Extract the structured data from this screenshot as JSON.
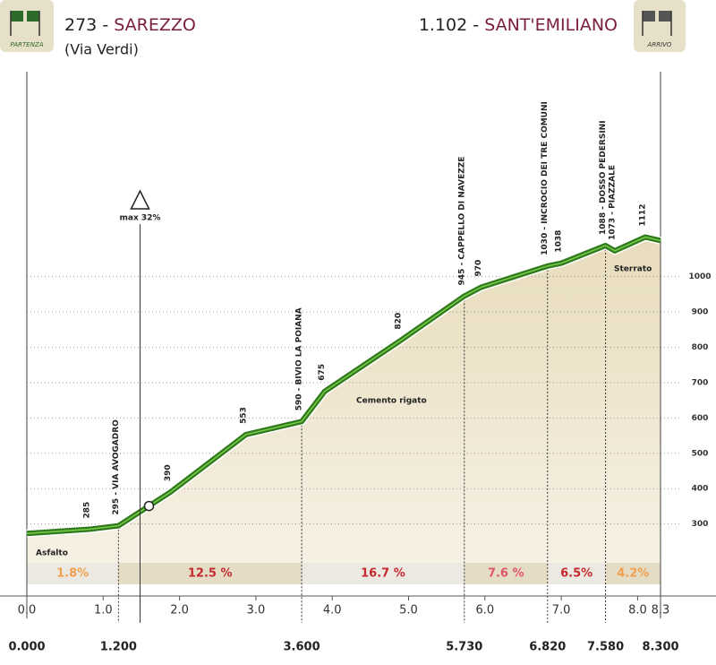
{
  "chart_data": {
    "type": "elevation-profile",
    "start": {
      "elevation": 273,
      "name": "SAREZZO",
      "note": "(Via Verdi)",
      "badge": "PARTENZA"
    },
    "end": {
      "elevation": {
        "value": 1102,
        "label": "1.102"
      },
      "name": "SANT'EMILIANO",
      "badge": "ARRIVO"
    },
    "separator": "-",
    "profile": {
      "x": [
        0,
        0.82,
        1.2,
        1.88,
        2.87,
        3.6,
        3.9,
        4.9,
        5.73,
        5.95,
        6.82,
        7.0,
        7.58,
        7.7,
        8.1,
        8.3
      ],
      "y": [
        273,
        285,
        295,
        390,
        553,
        590,
        675,
        820,
        945,
        970,
        1030,
        1038,
        1088,
        1073,
        1112,
        1102
      ],
      "point_labels": [
        null,
        "285",
        "295 - VIA AVOGADRO",
        "390",
        "553",
        "590 - BIVIO LA POIANA",
        "675",
        "820",
        "945 - CAPPELLO DI NAVEZZE",
        "970",
        "1030 - INCROCIO DEI TRE COMUNI",
        "1038",
        "1088 - DOSSO PEDERSINI",
        "1073 - PIAZZALE",
        "1112",
        null
      ],
      "color": "#2f7a1c"
    },
    "max_slope": {
      "label": "max 32%",
      "x": 1.6
    },
    "surfaces": [
      "Asfalto",
      "Cemento rigato",
      "Sterrato"
    ],
    "grades": {
      "values": [
        1.8,
        12.5,
        16.7,
        7.6,
        6.5,
        4.2
      ],
      "value_labels": [
        "1.8%",
        "12.5 %",
        "16.7 %",
        "7.6 %",
        "6.5%",
        "4.2%"
      ],
      "colors": [
        "#f0a050",
        "#c42a2e",
        "#c42a2e",
        "#e0566a",
        "#c42a2e",
        "#f0a050"
      ]
    },
    "markers": [
      {
        "value": 0,
        "label": "0.000"
      },
      {
        "value": 1.2,
        "label": "1.200"
      },
      {
        "value": 3.6,
        "label": "3.600"
      },
      {
        "value": 5.73,
        "label": "5.730"
      },
      {
        "value": 6.82,
        "label": "6.820"
      },
      {
        "value": 7.58,
        "label": "7.580"
      },
      {
        "value": 8.3,
        "label": "8.300"
      }
    ],
    "xlim": [
      0,
      8.3
    ],
    "xticks": [
      {
        "value": 0,
        "label": "0.0"
      },
      {
        "value": 1,
        "label": "1.0"
      },
      {
        "value": 2,
        "label": "2.0"
      },
      {
        "value": 3,
        "label": "3.0"
      },
      {
        "value": 4,
        "label": "4.0"
      },
      {
        "value": 5,
        "label": "5.0"
      },
      {
        "value": 6,
        "label": "6.0"
      },
      {
        "value": 7,
        "label": "7.0"
      },
      {
        "value": 8,
        "label": "8.0"
      },
      {
        "value": 8.3,
        "label": "8.3"
      }
    ],
    "ylim": [
      190,
      1580
    ],
    "yticks": [
      300,
      400,
      500,
      600,
      700,
      800,
      900,
      1000
    ],
    "grid": true
  }
}
